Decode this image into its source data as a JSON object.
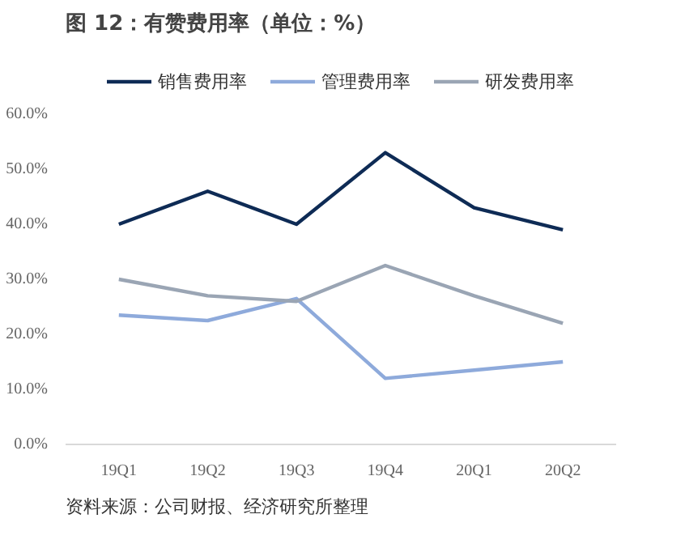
{
  "chart_data": {
    "type": "line",
    "title": "图 12：有赞费用率（单位：%）",
    "categories": [
      "19Q1",
      "19Q2",
      "19Q3",
      "19Q4",
      "20Q1",
      "20Q2"
    ],
    "series": [
      {
        "name": "销售费用率",
        "color": "#0e2b55",
        "values": [
          40,
          46,
          40,
          53,
          43,
          39
        ]
      },
      {
        "name": "管理费用率",
        "color": "#8eaadb",
        "values": [
          23.5,
          22.5,
          26.5,
          12,
          13.5,
          15
        ]
      },
      {
        "name": "研发费用率",
        "color": "#9aa5b4",
        "values": [
          30,
          27,
          26,
          32.5,
          27,
          22
        ]
      }
    ],
    "ylim": [
      0,
      60
    ],
    "yticks": [
      {
        "value": 0,
        "label": "0.0%"
      },
      {
        "value": 10,
        "label": "10.0%"
      },
      {
        "value": 20,
        "label": "20.0%"
      },
      {
        "value": 30,
        "label": "30.0%"
      },
      {
        "value": 40,
        "label": "40.0%"
      },
      {
        "value": 50,
        "label": "50.0%"
      },
      {
        "value": 60,
        "label": "60.0%"
      }
    ],
    "grid": false,
    "legend": "top",
    "marker": "none",
    "line_style": "solid",
    "annotations": [
      "资料来源：公司财报、经济研究所整理"
    ]
  }
}
